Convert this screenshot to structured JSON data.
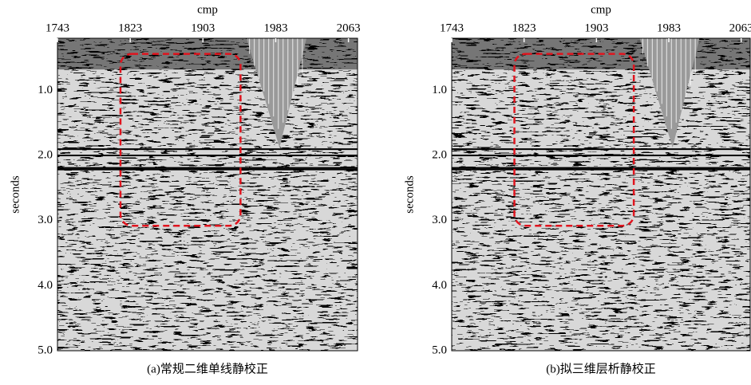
{
  "chart_data": [
    {
      "type": "seismic",
      "xlabel": "cmp",
      "ylabel": "seconds",
      "caption": "(a)常规二维单线静校正",
      "xlim": [
        1743,
        2073
      ],
      "xticks": [
        1743,
        1823,
        1903,
        1983,
        2063
      ],
      "ylim": [
        0.2,
        5.0
      ],
      "yticks": [
        {
          "value": 1,
          "label": "1.0"
        },
        {
          "value": 2,
          "label": "2.0"
        },
        {
          "value": 3,
          "label": "3.0"
        },
        {
          "value": 4,
          "label": "4.0"
        },
        {
          "value": 5,
          "label": "5.0"
        }
      ]
    },
    {
      "type": "seismic",
      "xlabel": "cmp",
      "ylabel": "seconds",
      "caption": "(b)拟三维层析静校正",
      "xlim": [
        1743,
        2073
      ],
      "xticks": [
        1743,
        1823,
        1903,
        1983,
        2063
      ],
      "ylim": [
        0.2,
        5.0
      ],
      "yticks": [
        {
          "value": 1,
          "label": "1.0"
        },
        {
          "value": 2,
          "label": "2.0"
        },
        {
          "value": 3,
          "label": "3.0"
        },
        {
          "value": 4,
          "label": "4.0"
        },
        {
          "value": 5,
          "label": "5.0"
        }
      ]
    }
  ]
}
